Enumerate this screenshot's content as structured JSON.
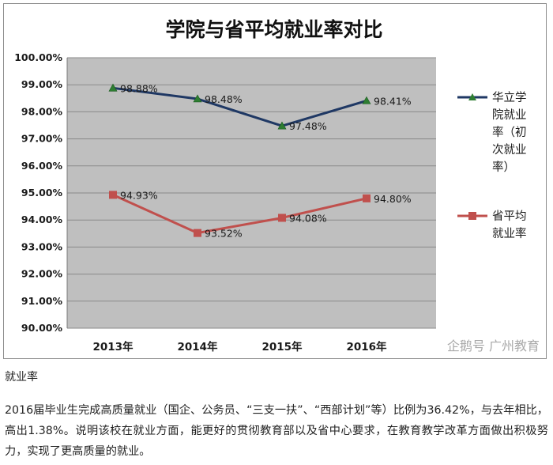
{
  "chart_data": {
    "type": "line",
    "title": "学院与省平均就业率对比",
    "categories": [
      "2013年",
      "2014年",
      "2015年",
      "2016年"
    ],
    "ylim": [
      90,
      100
    ],
    "yticks": [
      "90.00%",
      "91.00%",
      "92.00%",
      "93.00%",
      "94.00%",
      "95.00%",
      "96.00%",
      "97.00%",
      "98.00%",
      "99.00%",
      "100.00%"
    ],
    "grid": true,
    "legend_position": "right",
    "series": [
      {
        "name": "华立学院就业率（初次就业率）",
        "legend_lines": [
          "华立学",
          "院就业",
          "率（初",
          "次就业",
          "率）"
        ],
        "values": [
          98.88,
          98.48,
          97.48,
          98.41
        ],
        "labels": [
          "98.88%",
          "98.48%",
          "97.48%",
          "98.41%"
        ],
        "color": "#1f3864",
        "marker": "triangle",
        "marker_color": "#2e7d32"
      },
      {
        "name": "省平均就业率",
        "legend_lines": [
          "省平均",
          "就业率"
        ],
        "values": [
          94.93,
          93.52,
          94.08,
          94.8
        ],
        "labels": [
          "94.93%",
          "93.52%",
          "94.08%",
          "94.80%"
        ],
        "color": "#c0504d",
        "marker": "square",
        "marker_color": "#c0504d"
      }
    ],
    "watermark": "企鹅号 广州教育"
  },
  "caption": "就业率",
  "paragraph": "2016届毕业生完成高质量就业（国企、公务员、“三支一扶”、“西部计划”等）比例为36.42%，与去年相比，高出1.38%。说明该校在就业方面，能更好的贯彻教育部以及省中心要求，在教育教学改革方面做出积极努力，实现了更高质量的就业。"
}
